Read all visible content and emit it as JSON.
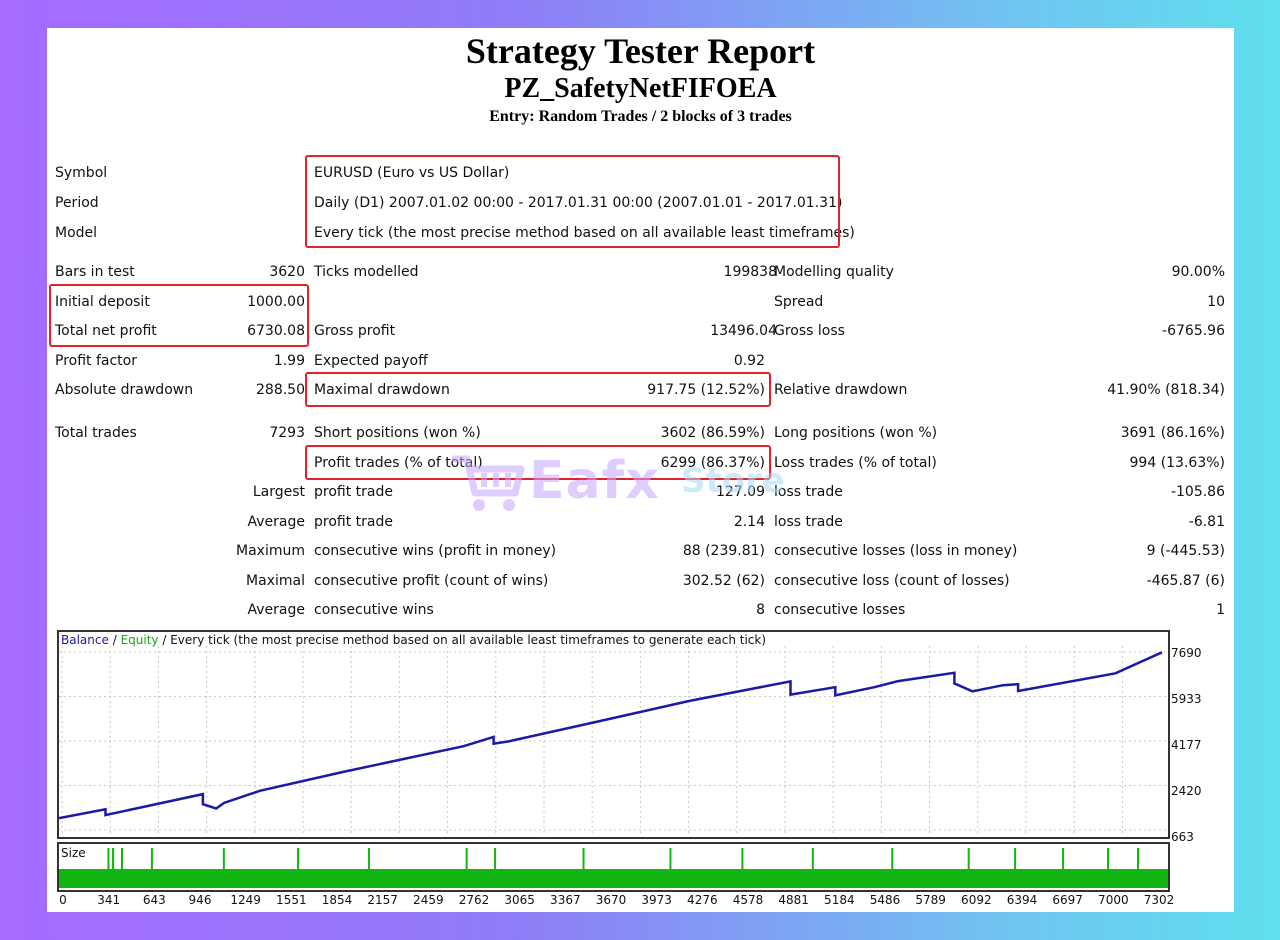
{
  "header": {
    "title": "Strategy Tester Report",
    "ea_name": "PZ_SafetyNetFIFOEA",
    "entry": "Entry: Random Trades / 2 blocks of 3 trades"
  },
  "info": [
    {
      "label": "Symbol",
      "value": "EURUSD (Euro vs US Dollar)"
    },
    {
      "label": "Period",
      "value": "Daily (D1) 2007.01.02 00:00 - 2017.01.31 00:00 (2007.01.01 - 2017.01.31)"
    },
    {
      "label": "Model",
      "value": "Every tick (the most precise method based on all available least timeframes)"
    }
  ],
  "stats": {
    "bars_label": "Bars in test",
    "bars_value": "3620",
    "ticks_label": "Ticks modelled",
    "ticks_value": "199838",
    "quality_label": "Modelling quality",
    "quality_value": "90.00%",
    "deposit_label": "Initial deposit",
    "deposit_value": "1000.00",
    "spread_label": "Spread",
    "spread_value": "10",
    "netprofit_label": "Total net profit",
    "netprofit_value": "6730.08",
    "grossprofit_label": "Gross profit",
    "grossprofit_value": "13496.04",
    "grossloss_label": "Gross loss",
    "grossloss_value": "-6765.96",
    "pf_label": "Profit factor",
    "pf_value": "1.99",
    "payoff_label": "Expected payoff",
    "payoff_value": "0.92",
    "absdd_label": "Absolute drawdown",
    "absdd_value": "288.50",
    "maxdd_label": "Maximal drawdown",
    "maxdd_value": "917.75 (12.52%)",
    "reldd_label": "Relative drawdown",
    "reldd_value": "41.90% (818.34)",
    "trades_label": "Total trades",
    "trades_value": "7293",
    "short_label": "Short positions (won %)",
    "short_value": "3602 (86.59%)",
    "long_label": "Long positions (won %)",
    "long_value": "3691 (86.16%)",
    "ptrades_label": "Profit trades (% of total)",
    "ptrades_value": "6299 (86.37%)",
    "ltrades_label": "Loss trades (% of total)",
    "ltrades_value": "994 (13.63%)",
    "largest_label": "Largest",
    "largest_p_label": "profit trade",
    "largest_p_value": "127.09",
    "largest_l_label": "loss trade",
    "largest_l_value": "-105.86",
    "average_label": "Average",
    "average_p_label": "profit trade",
    "average_p_value": "2.14",
    "average_l_label": "loss trade",
    "average_l_value": "-6.81",
    "maximum_label": "Maximum",
    "maximum_w_label": "consecutive wins (profit in money)",
    "maximum_w_value": "88 (239.81)",
    "maximum_l_label": "consecutive losses (loss in money)",
    "maximum_l_value": "9 (-445.53)",
    "maximal_label": "Maximal",
    "maximal_w_label": "consecutive profit (count of wins)",
    "maximal_w_value": "302.52 (62)",
    "maximal_l_label": "consecutive loss (count of losses)",
    "maximal_l_value": "-465.87 (6)",
    "avg2_label": "Average",
    "avg2_w_label": "consecutive wins",
    "avg2_w_value": "8",
    "avg2_l_label": "consecutive losses",
    "avg2_l_value": "1"
  },
  "watermark": {
    "text": "Eafx",
    "suffix": "Store"
  },
  "chart_data": {
    "type": "line",
    "legend_balance": "Balance",
    "legend_sep1": "/",
    "legend_equity": "Equity",
    "legend_sep2": "/",
    "legend_rest": "Every tick (the most precise method based on all available least timeframes to generate each tick)",
    "size_label": "Size",
    "ylim": [
      663,
      7690
    ],
    "y_ticks": [
      "7690",
      "5933",
      "4177",
      "2420",
      "663"
    ],
    "x_ticks": [
      "0",
      "341",
      "643",
      "946",
      "1249",
      "1551",
      "1854",
      "2157",
      "2459",
      "2762",
      "3065",
      "3367",
      "3670",
      "3973",
      "4276",
      "4578",
      "4881",
      "5184",
      "5486",
      "5789",
      "6092",
      "6394",
      "6697",
      "7000",
      "7302"
    ],
    "balance_color": "#1a1aa6",
    "equity_color": "#1aa61a",
    "series": [
      {
        "name": "Balance",
        "x": [
          0,
          310,
          310,
          960,
          960,
          1049,
          1049,
          1100,
          1340,
          1890,
          2700,
          2900,
          2900,
          3000,
          3600,
          4200,
          4600,
          4881,
          4881,
          5180,
          5180,
          5440,
          5600,
          5975,
          5975,
          6094,
          6300,
          6400,
          6400,
          7050,
          7360
        ],
        "y": [
          1130,
          1480,
          1250,
          2080,
          1680,
          1510,
          1510,
          1730,
          2210,
          2950,
          3970,
          4340,
          4070,
          4160,
          4950,
          5750,
          6210,
          6530,
          6010,
          6300,
          5980,
          6300,
          6540,
          6870,
          6450,
          6140,
          6380,
          6420,
          6150,
          6850,
          7680
        ]
      }
    ],
    "size_bars_x": [
      330,
      361,
      361,
      420,
      620,
      1100,
      1595,
      2068,
      2720,
      2910,
      3500,
      4080,
      4560,
      5030,
      5560,
      6070,
      6380,
      6700,
      7000,
      7200
    ]
  }
}
